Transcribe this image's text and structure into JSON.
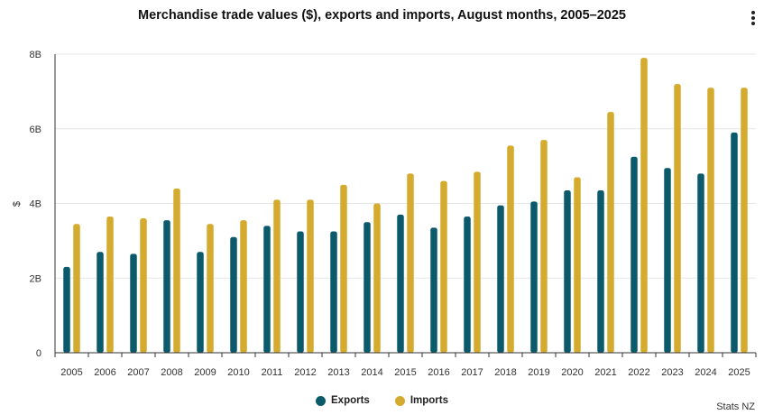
{
  "header": {
    "title": "Merchandise trade values ($), exports and imports, August months, 2005–2025"
  },
  "credit": "Stats NZ",
  "colors": {
    "exports": "#0b5a6b",
    "imports": "#d4ab2f",
    "grid": "#e6e6e6",
    "axis": "#333333"
  },
  "chart_data": {
    "type": "bar",
    "title": "Merchandise trade values ($), exports and imports, August months, 2005–2025",
    "xlabel": "",
    "ylabel": "$",
    "ylim": [
      0,
      8
    ],
    "yticks": [
      0,
      2,
      4,
      6,
      8
    ],
    "ytick_labels": [
      "0",
      "2B",
      "4B",
      "6B",
      "8B"
    ],
    "categories": [
      "2005",
      "2006",
      "2007",
      "2008",
      "2009",
      "2010",
      "2011",
      "2012",
      "2013",
      "2014",
      "2015",
      "2016",
      "2017",
      "2018",
      "2019",
      "2020",
      "2021",
      "2022",
      "2023",
      "2024",
      "2025"
    ],
    "series": [
      {
        "name": "Exports",
        "values": [
          2.3,
          2.7,
          2.65,
          3.55,
          2.7,
          3.1,
          3.4,
          3.25,
          3.25,
          3.5,
          3.7,
          3.35,
          3.65,
          3.95,
          4.05,
          4.35,
          4.35,
          5.25,
          4.95,
          4.8,
          5.9
        ]
      },
      {
        "name": "Imports",
        "values": [
          3.45,
          3.65,
          3.6,
          4.4,
          3.45,
          3.55,
          4.1,
          4.1,
          4.5,
          4.0,
          4.8,
          4.6,
          4.85,
          5.55,
          5.7,
          4.7,
          6.45,
          7.9,
          7.2,
          7.1,
          7.1
        ]
      }
    ],
    "legend": "bottom-center",
    "grid": true
  }
}
